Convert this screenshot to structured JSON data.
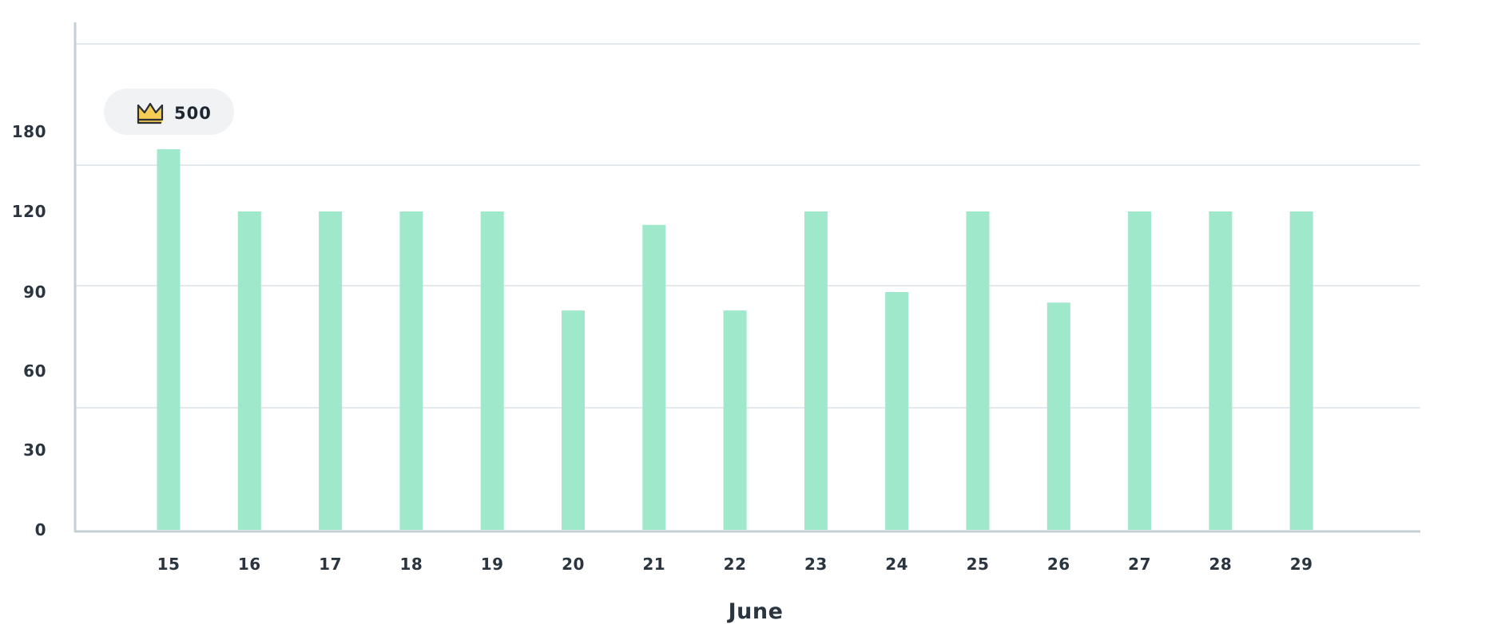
{
  "chart_data": {
    "type": "bar",
    "xlabel": "June",
    "categories": [
      "15",
      "16",
      "17",
      "18",
      "19",
      "20",
      "21",
      "22",
      "23",
      "24",
      "25",
      "26",
      "27",
      "28",
      "29"
    ],
    "values": [
      500,
      120,
      120,
      120,
      120,
      83,
      115,
      83,
      120,
      90,
      120,
      86,
      120,
      120,
      120
    ],
    "yticks": [
      "0",
      "30",
      "60",
      "90",
      "120",
      "180"
    ],
    "grid": true,
    "colors": {
      "bar": "#9fe8cb",
      "axis": "#c5cfd6",
      "grid": "#e5e9ec",
      "badge_bg": "#f0f2f4"
    },
    "badge": {
      "icon": "crown-icon",
      "label": "500",
      "category": "15"
    }
  }
}
